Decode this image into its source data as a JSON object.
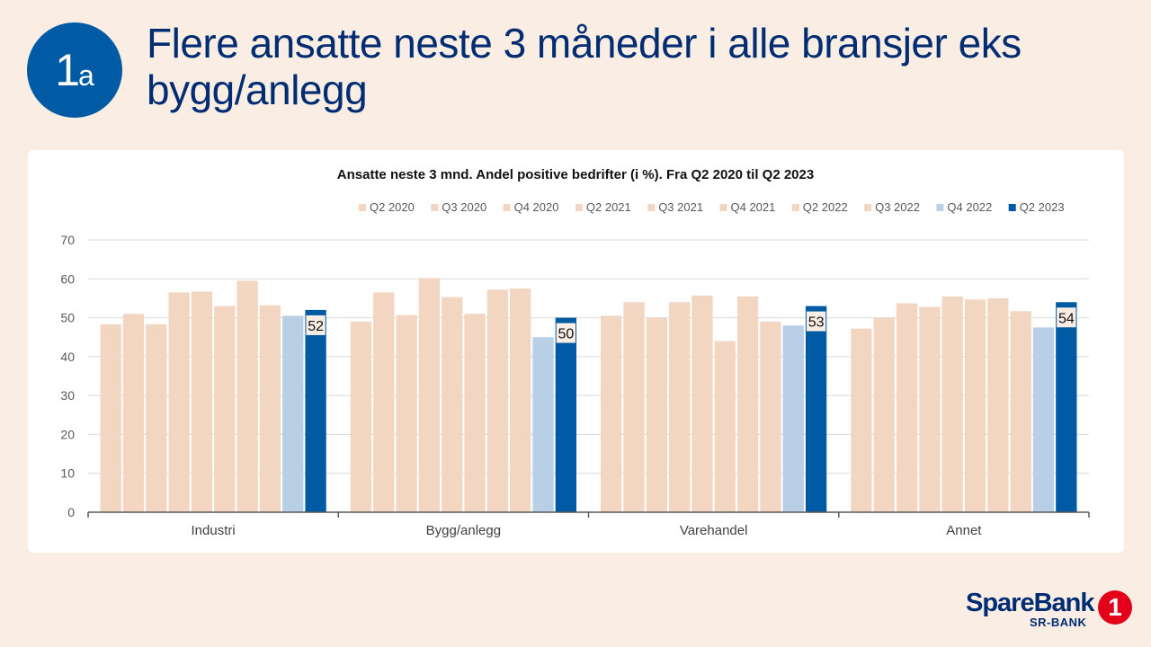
{
  "badge": {
    "number": "1",
    "letter": "a"
  },
  "title": "Flere ansatte neste 3 måneder i alle bransjer eks bygg/anlegg",
  "logo": {
    "word": "SpareBank",
    "sub": "SR-BANK",
    "mark": "1"
  },
  "colors": {
    "light": "#f2d6c2",
    "q4_2022": "#b8cfe6",
    "q2_2023": "#005aa4",
    "grid": "#d9d9d9",
    "axis": "#595959"
  },
  "chart_data": {
    "type": "bar",
    "title": "Ansatte neste 3 mnd. Andel positive bedrifter (i %). Fra Q2 2020 til Q2 2023",
    "xlabel": "",
    "ylabel": "",
    "ylim": [
      0,
      70
    ],
    "yticks": [
      0,
      10,
      20,
      30,
      40,
      50,
      60,
      70
    ],
    "legend_position": "top",
    "categories": [
      "Industri",
      "Bygg/anlegg",
      "Varehandel",
      "Annet"
    ],
    "series": [
      {
        "name": "Q2 2020",
        "values": [
          48.3,
          49.0,
          50.5,
          47.2
        ]
      },
      {
        "name": "Q3 2020",
        "values": [
          51.0,
          56.5,
          54.0,
          50.0
        ]
      },
      {
        "name": "Q4 2020",
        "values": [
          48.3,
          50.7,
          50.0,
          53.7
        ]
      },
      {
        "name": "Q2 2021",
        "values": [
          56.5,
          60.2,
          54.0,
          52.8
        ]
      },
      {
        "name": "Q3 2021",
        "values": [
          56.7,
          55.3,
          55.7,
          55.5
        ]
      },
      {
        "name": "Q4 2021",
        "values": [
          53.0,
          51.0,
          44.0,
          54.7
        ]
      },
      {
        "name": "Q2 2022",
        "values": [
          59.5,
          57.2,
          55.5,
          55.0
        ]
      },
      {
        "name": "Q3 2022",
        "values": [
          53.2,
          57.5,
          49.0,
          51.7
        ]
      },
      {
        "name": "Q4 2022",
        "values": [
          50.5,
          45.0,
          48.0,
          47.5
        ]
      },
      {
        "name": "Q2 2023",
        "values": [
          52,
          50,
          53,
          54
        ]
      }
    ],
    "data_labels": [
      "52",
      "50",
      "53",
      "54"
    ]
  }
}
